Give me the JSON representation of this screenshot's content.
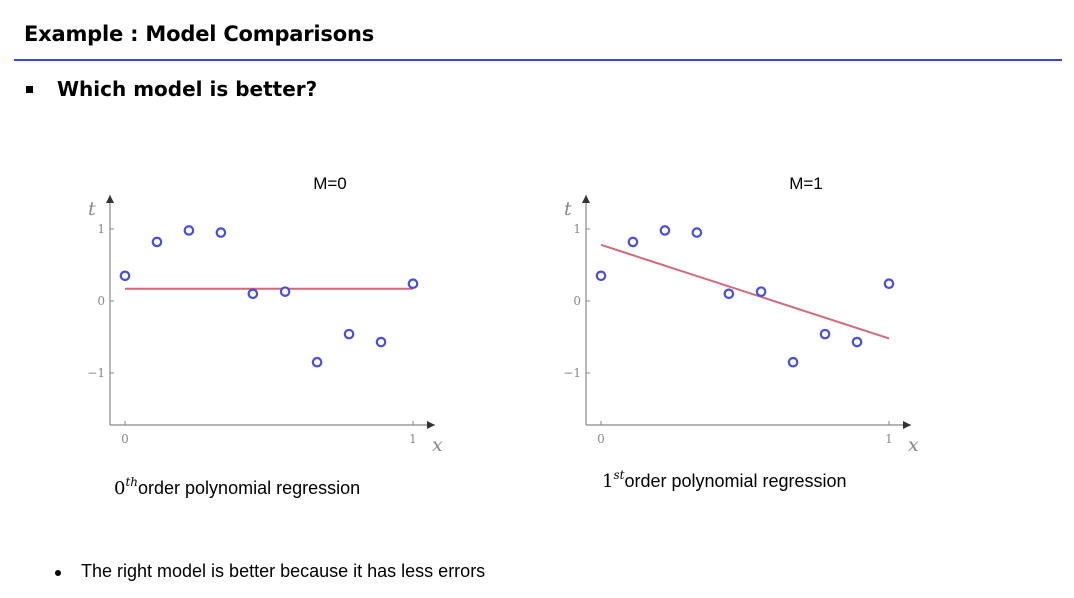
{
  "header": {
    "title": "Example : Model Comparisons"
  },
  "question": "Which model is better?",
  "charts": [
    {
      "title": "M=0",
      "caption_num": "0",
      "caption_sup": "th",
      "caption_text": "order polynomial regression"
    },
    {
      "title": "M=1",
      "caption_num": "1",
      "caption_sup": "st",
      "caption_text": "order polynomial regression"
    }
  ],
  "note": "The right model is better because it has less errors",
  "colors": {
    "accent_rule": "#3b46d6",
    "points": "#4a4fd8",
    "fit_line": "#d06a7a",
    "axis": "#888888"
  },
  "chart_data": [
    {
      "type": "scatter",
      "title": "M=0",
      "xlabel": "x",
      "ylabel": "t",
      "xlim": [
        0,
        1
      ],
      "ylim": [
        -1.5,
        1.2
      ],
      "x_ticks": [
        "0",
        "1"
      ],
      "y_ticks": [
        "-1",
        "0",
        "1"
      ],
      "points": {
        "x": [
          0.0,
          0.111,
          0.222,
          0.333,
          0.444,
          0.556,
          0.667,
          0.778,
          0.889,
          1.0
        ],
        "y": [
          0.35,
          0.82,
          0.98,
          0.95,
          0.1,
          0.13,
          -0.85,
          -0.46,
          -0.57,
          0.24
        ]
      },
      "fit": {
        "degree": 0,
        "x": [
          0.0,
          1.0
        ],
        "y": [
          0.17,
          0.17
        ]
      }
    },
    {
      "type": "scatter",
      "title": "M=1",
      "xlabel": "x",
      "ylabel": "t",
      "xlim": [
        0,
        1
      ],
      "ylim": [
        -1.5,
        1.2
      ],
      "x_ticks": [
        "0",
        "1"
      ],
      "y_ticks": [
        "-1",
        "0",
        "1"
      ],
      "points": {
        "x": [
          0.0,
          0.111,
          0.222,
          0.333,
          0.444,
          0.556,
          0.667,
          0.778,
          0.889,
          1.0
        ],
        "y": [
          0.35,
          0.82,
          0.98,
          0.95,
          0.1,
          0.13,
          -0.85,
          -0.46,
          -0.57,
          0.24
        ]
      },
      "fit": {
        "degree": 1,
        "x": [
          0.0,
          1.0
        ],
        "y": [
          0.78,
          -0.52
        ]
      }
    }
  ]
}
